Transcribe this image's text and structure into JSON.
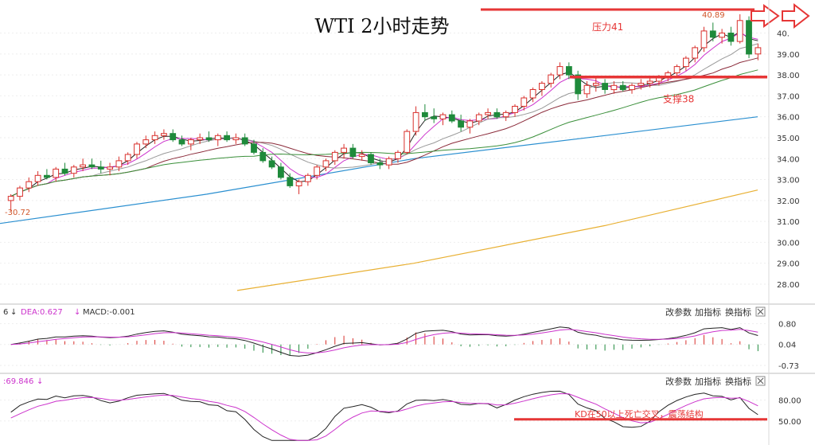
{
  "chart_data": {
    "type": "candlestick",
    "title": "WTI 2小时走势",
    "main_panel": {
      "y_range": [
        27.2,
        41.2
      ],
      "y_ticks": [
        "40.",
        "39.00",
        "38.00",
        "37.00",
        "36.00",
        "35.00",
        "34.00",
        "33.00",
        "32.00",
        "31.00",
        "30.00",
        "29.00",
        "28.00"
      ],
      "y_tick_values": [
        40.0,
        39.0,
        38.0,
        37.0,
        36.0,
        35.0,
        34.0,
        33.0,
        32.0,
        31.0,
        30.0,
        29.0,
        28.0
      ],
      "price_labels": {
        "low": "-30.72",
        "high": "40.89"
      },
      "annotations": {
        "resistance": {
          "label": "压力41",
          "value": 41.0
        },
        "support": {
          "label": "支撑38",
          "value": 37.9
        }
      },
      "candles": [
        [
          32.0,
          32.3,
          31.5,
          32.2
        ],
        [
          32.2,
          32.7,
          32.0,
          32.6
        ],
        [
          32.6,
          33.1,
          32.4,
          32.9
        ],
        [
          32.9,
          33.4,
          32.7,
          33.2
        ],
        [
          33.2,
          33.5,
          33.0,
          33.1
        ],
        [
          33.1,
          33.6,
          32.9,
          33.5
        ],
        [
          33.5,
          33.8,
          33.2,
          33.3
        ],
        [
          33.3,
          33.7,
          33.1,
          33.6
        ],
        [
          33.6,
          34.0,
          33.4,
          33.7
        ],
        [
          33.7,
          34.0,
          33.5,
          33.6
        ],
        [
          33.6,
          33.9,
          33.3,
          33.5
        ],
        [
          33.5,
          33.8,
          33.2,
          33.6
        ],
        [
          33.6,
          34.1,
          33.4,
          33.9
        ],
        [
          33.9,
          34.3,
          33.7,
          34.2
        ],
        [
          34.2,
          34.8,
          34.0,
          34.7
        ],
        [
          34.7,
          35.1,
          34.5,
          34.9
        ],
        [
          34.9,
          35.3,
          34.7,
          35.1
        ],
        [
          35.1,
          35.4,
          34.9,
          35.2
        ],
        [
          35.2,
          35.4,
          34.8,
          34.9
        ],
        [
          34.9,
          35.1,
          34.6,
          34.7
        ],
        [
          34.7,
          35.0,
          34.4,
          34.9
        ],
        [
          34.9,
          35.2,
          34.7,
          35.0
        ],
        [
          35.0,
          35.3,
          34.8,
          34.9
        ],
        [
          34.9,
          35.2,
          34.6,
          35.1
        ],
        [
          35.1,
          35.3,
          34.8,
          34.9
        ],
        [
          34.9,
          35.2,
          34.7,
          35.0
        ],
        [
          35.0,
          35.2,
          34.6,
          34.7
        ],
        [
          34.7,
          34.9,
          34.2,
          34.3
        ],
        [
          34.3,
          34.5,
          33.8,
          33.9
        ],
        [
          33.9,
          34.1,
          33.5,
          33.6
        ],
        [
          33.6,
          33.8,
          33.0,
          33.1
        ],
        [
          33.1,
          33.3,
          32.6,
          32.7
        ],
        [
          32.7,
          33.0,
          32.3,
          32.9
        ],
        [
          32.9,
          33.3,
          32.7,
          33.2
        ],
        [
          33.2,
          33.7,
          33.0,
          33.6
        ],
        [
          33.6,
          34.0,
          33.4,
          33.9
        ],
        [
          33.9,
          34.4,
          33.7,
          34.3
        ],
        [
          34.3,
          34.7,
          34.0,
          34.5
        ],
        [
          34.5,
          34.7,
          34.0,
          34.1
        ],
        [
          34.1,
          34.4,
          33.9,
          34.2
        ],
        [
          34.2,
          34.3,
          33.7,
          33.8
        ],
        [
          33.8,
          34.0,
          33.5,
          33.7
        ],
        [
          33.7,
          34.1,
          33.5,
          34.0
        ],
        [
          34.0,
          34.4,
          33.8,
          34.3
        ],
        [
          34.3,
          35.4,
          34.2,
          35.3
        ],
        [
          35.3,
          36.5,
          35.1,
          36.2
        ],
        [
          36.2,
          36.6,
          35.8,
          36.0
        ],
        [
          36.0,
          36.4,
          35.7,
          35.9
        ],
        [
          35.9,
          36.2,
          35.6,
          36.1
        ],
        [
          36.1,
          36.3,
          35.7,
          35.8
        ],
        [
          35.8,
          36.1,
          35.3,
          35.5
        ],
        [
          35.5,
          35.9,
          35.2,
          35.8
        ],
        [
          35.8,
          36.2,
          35.6,
          36.1
        ],
        [
          36.1,
          36.4,
          35.9,
          36.2
        ],
        [
          36.2,
          36.4,
          35.9,
          36.0
        ],
        [
          36.0,
          36.3,
          35.8,
          36.2
        ],
        [
          36.2,
          36.6,
          36.0,
          36.5
        ],
        [
          36.5,
          37.0,
          36.3,
          36.9
        ],
        [
          36.9,
          37.4,
          36.7,
          37.3
        ],
        [
          37.3,
          37.7,
          37.0,
          37.6
        ],
        [
          37.6,
          38.1,
          37.4,
          38.0
        ],
        [
          38.0,
          38.6,
          37.8,
          38.4
        ],
        [
          38.4,
          38.6,
          37.8,
          38.0
        ],
        [
          38.0,
          38.2,
          36.8,
          37.1
        ],
        [
          37.1,
          37.7,
          36.9,
          37.5
        ],
        [
          37.5,
          37.9,
          37.2,
          37.6
        ],
        [
          37.6,
          37.8,
          37.1,
          37.3
        ],
        [
          37.3,
          37.7,
          37.1,
          37.5
        ],
        [
          37.5,
          37.7,
          37.2,
          37.3
        ],
        [
          37.3,
          37.6,
          37.1,
          37.5
        ],
        [
          37.5,
          37.8,
          37.3,
          37.6
        ],
        [
          37.6,
          37.9,
          37.4,
          37.7
        ],
        [
          37.7,
          38.0,
          37.5,
          37.9
        ],
        [
          37.9,
          38.2,
          37.7,
          38.1
        ],
        [
          38.1,
          38.5,
          37.9,
          38.4
        ],
        [
          38.4,
          38.9,
          38.2,
          38.8
        ],
        [
          38.8,
          39.4,
          38.6,
          39.3
        ],
        [
          39.3,
          40.3,
          39.1,
          40.1
        ],
        [
          40.1,
          40.5,
          39.6,
          39.8
        ],
        [
          39.8,
          40.2,
          39.5,
          40.0
        ],
        [
          40.0,
          40.3,
          39.4,
          39.6
        ],
        [
          39.6,
          40.9,
          39.5,
          40.6
        ],
        [
          40.6,
          40.8,
          38.8,
          39.0
        ],
        [
          39.0,
          39.5,
          38.7,
          39.3
        ]
      ]
    },
    "macd_panel": {
      "header": [
        "6",
        "↓",
        "DEA:0.627",
        "↓",
        "MACD:-0.001"
      ],
      "buttons": [
        "改参数",
        "加指标",
        "换指标"
      ],
      "y_range": [
        -0.9,
        1.05
      ],
      "y_ticks": [
        "0.80",
        "0.04",
        "-0.73"
      ],
      "y_tick_values": [
        0.8,
        0.04,
        -0.73
      ]
    },
    "kd_panel": {
      "header": [
        ":69.846",
        "↓"
      ],
      "buttons": [
        "改参数",
        "加指标",
        "换指标"
      ],
      "y_range": [
        20,
        100
      ],
      "y_ticks": [
        "80.00",
        "50.00"
      ],
      "y_tick_values": [
        80,
        50
      ],
      "annotation": {
        "label": "KD在50以上死亡交叉，震荡结构",
        "value": 50
      }
    }
  },
  "colors": {
    "up": "#d9302c",
    "down": "#1e8a3b",
    "annotation": "#e63636",
    "ma_black": "#222222",
    "ma_magenta": "#cc33cc",
    "ma_gray": "#999999",
    "ma_maroon": "#8b2b3a",
    "ma_green": "#3a8f3a",
    "ma_blue": "#2a8fd0",
    "ma_orange": "#e8b033"
  }
}
